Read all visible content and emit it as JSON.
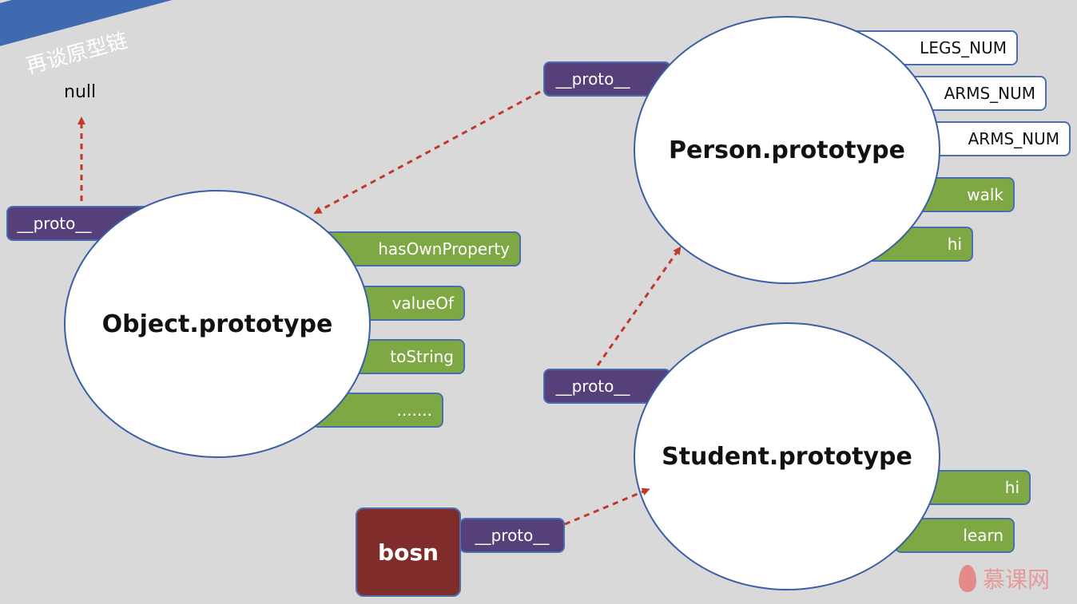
{
  "title": "再谈原型链",
  "null_label": "null",
  "object_proto": {
    "name": "Object.prototype",
    "proto_label": "__proto__",
    "methods": [
      "hasOwnProperty",
      "valueOf",
      "toString",
      "......."
    ]
  },
  "person_proto": {
    "name": "Person.prototype",
    "proto_label": "__proto__",
    "props": [
      "LEGS_NUM",
      "ARMS_NUM",
      "ARMS_NUM"
    ],
    "methods": [
      "walk",
      "hi"
    ]
  },
  "student_proto": {
    "name": "Student.prototype",
    "proto_label": "__proto__",
    "methods": [
      "hi",
      "learn"
    ]
  },
  "bosn": {
    "name": "bosn",
    "proto_label": "__proto__"
  },
  "watermark": "慕课网",
  "colors": {
    "background": "#d9d9d9",
    "banner": "#3f6ab0",
    "method_green": "#7ea843",
    "proto_purple": "#55407a",
    "border_blue": "#4a6fb0",
    "instance_red": "#7f2c2a",
    "arrow_red": "#c0392b"
  }
}
